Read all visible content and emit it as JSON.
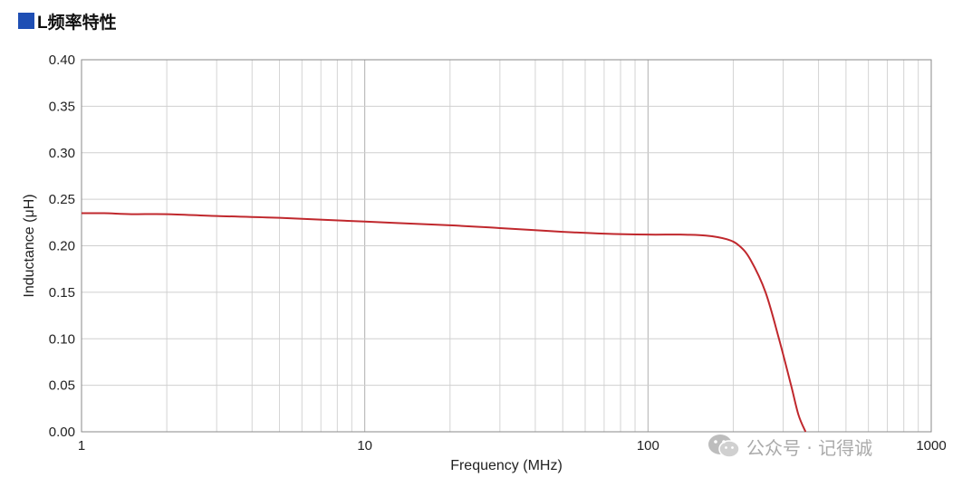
{
  "chart_data": {
    "type": "line",
    "title": "L频率特性",
    "xlabel": "Frequency (MHz)",
    "ylabel": "Inductance (μH)",
    "xscale": "log",
    "xlim": [
      1,
      1000
    ],
    "ylim": [
      0,
      0.4
    ],
    "grid": true,
    "x_ticks": [
      1,
      10,
      100,
      1000
    ],
    "x_tick_labels": [
      "1",
      "10",
      "100",
      "1000"
    ],
    "y_ticks": [
      0,
      0.05,
      0.1,
      0.15,
      0.2,
      0.25,
      0.3,
      0.35,
      0.4
    ],
    "y_tick_labels": [
      "0.00",
      "0.05",
      "0.10",
      "0.15",
      "0.20",
      "0.25",
      "0.30",
      "0.35",
      "0.40"
    ],
    "series": [
      {
        "color": "#c0282d",
        "x": [
          1,
          1.2,
          1.5,
          2,
          3,
          5,
          10,
          20,
          30,
          50,
          70,
          100,
          130,
          160,
          190,
          210,
          230,
          260,
          290,
          320,
          340,
          360
        ],
        "y": [
          0.235,
          0.235,
          0.234,
          0.234,
          0.232,
          0.23,
          0.226,
          0.222,
          0.219,
          0.215,
          0.213,
          0.212,
          0.212,
          0.211,
          0.207,
          0.2,
          0.185,
          0.15,
          0.1,
          0.05,
          0.018,
          0.0
        ]
      }
    ]
  },
  "watermark": {
    "text": "公众号 · 记得诚",
    "icon": "wechat-icon"
  }
}
